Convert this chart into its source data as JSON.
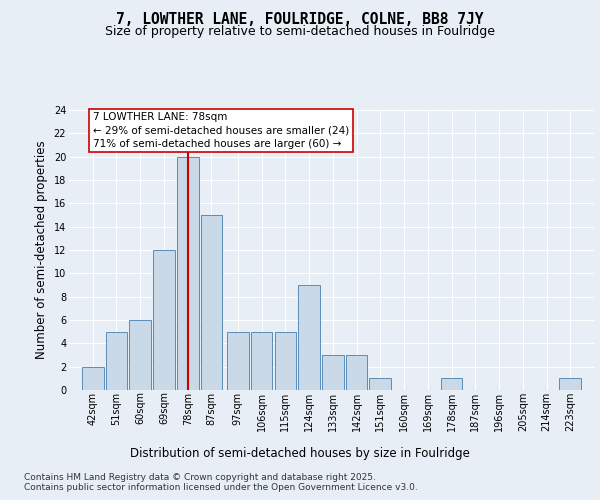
{
  "title": "7, LOWTHER LANE, FOULRIDGE, COLNE, BB8 7JY",
  "subtitle": "Size of property relative to semi-detached houses in Foulridge",
  "xlabel": "Distribution of semi-detached houses by size in Foulridge",
  "ylabel": "Number of semi-detached properties",
  "bins": [
    42,
    51,
    60,
    69,
    78,
    87,
    97,
    106,
    115,
    124,
    133,
    142,
    151,
    160,
    169,
    178,
    187,
    196,
    205,
    214,
    223
  ],
  "counts": [
    2,
    5,
    6,
    12,
    20,
    15,
    5,
    5,
    5,
    9,
    3,
    3,
    1,
    0,
    0,
    1,
    0,
    0,
    0,
    0,
    1
  ],
  "bar_color": "#c9d9e8",
  "bar_edge_color": "#5b8db8",
  "highlight_bin_index": 4,
  "highlight_color": "#cc0000",
  "annotation_text": "7 LOWTHER LANE: 78sqm\n← 29% of semi-detached houses are smaller (24)\n71% of semi-detached houses are larger (60) →",
  "annotation_box_color": "#ffffff",
  "annotation_box_edge_color": "#cc0000",
  "ylim": [
    0,
    24
  ],
  "yticks": [
    0,
    2,
    4,
    6,
    8,
    10,
    12,
    14,
    16,
    18,
    20,
    22,
    24
  ],
  "tick_labels": [
    "42sqm",
    "51sqm",
    "60sqm",
    "69sqm",
    "78sqm",
    "87sqm",
    "97sqm",
    "106sqm",
    "115sqm",
    "124sqm",
    "133sqm",
    "142sqm",
    "151sqm",
    "160sqm",
    "169sqm",
    "178sqm",
    "187sqm",
    "196sqm",
    "205sqm",
    "214sqm",
    "223sqm"
  ],
  "footer": "Contains HM Land Registry data © Crown copyright and database right 2025.\nContains public sector information licensed under the Open Government Licence v3.0.",
  "bg_color": "#e8eef5",
  "plot_bg_color": "#e8eef5",
  "grid_color": "#ffffff",
  "title_fontsize": 10.5,
  "subtitle_fontsize": 9,
  "axis_label_fontsize": 8.5,
  "tick_fontsize": 7,
  "footer_fontsize": 6.5,
  "annotation_fontsize": 7.5
}
